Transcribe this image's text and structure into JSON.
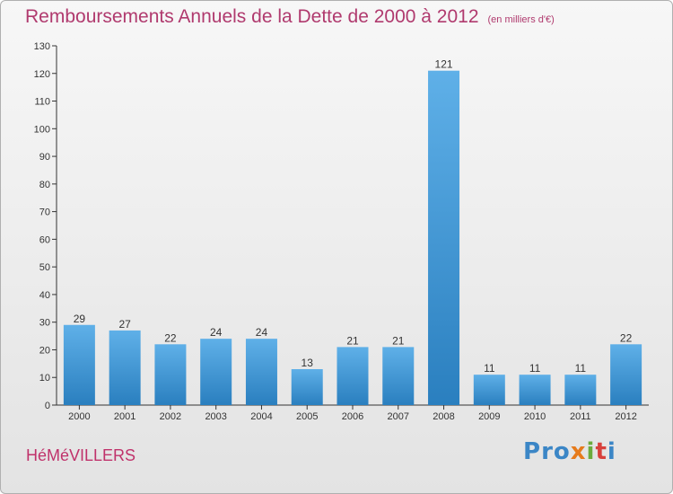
{
  "header": {
    "title": "Remboursements Annuels de la Dette de 2000 à 2012",
    "unit_note": "(en milliers d'€)"
  },
  "footer": {
    "town": "HéMéVILLERS",
    "logo_text": "Proxiti"
  },
  "colors": {
    "title": "#b03a6e",
    "bar_top": "#5fb0e8",
    "bar_bottom": "#2a7fbf",
    "axis": "#333333"
  },
  "chart_data": {
    "type": "bar",
    "categories": [
      "2000",
      "2001",
      "2002",
      "2003",
      "2004",
      "2005",
      "2006",
      "2007",
      "2008",
      "2009",
      "2010",
      "2011",
      "2012"
    ],
    "values": [
      29,
      27,
      22,
      24,
      24,
      13,
      21,
      21,
      121,
      11,
      11,
      11,
      22
    ],
    "title": "Remboursements Annuels de la Dette de 2000 à 2012",
    "ylim": [
      0,
      130
    ],
    "yticks": [
      0,
      10,
      20,
      30,
      40,
      50,
      60,
      70,
      80,
      90,
      100,
      110,
      120,
      130
    ],
    "grid": false,
    "data_labels": true
  }
}
